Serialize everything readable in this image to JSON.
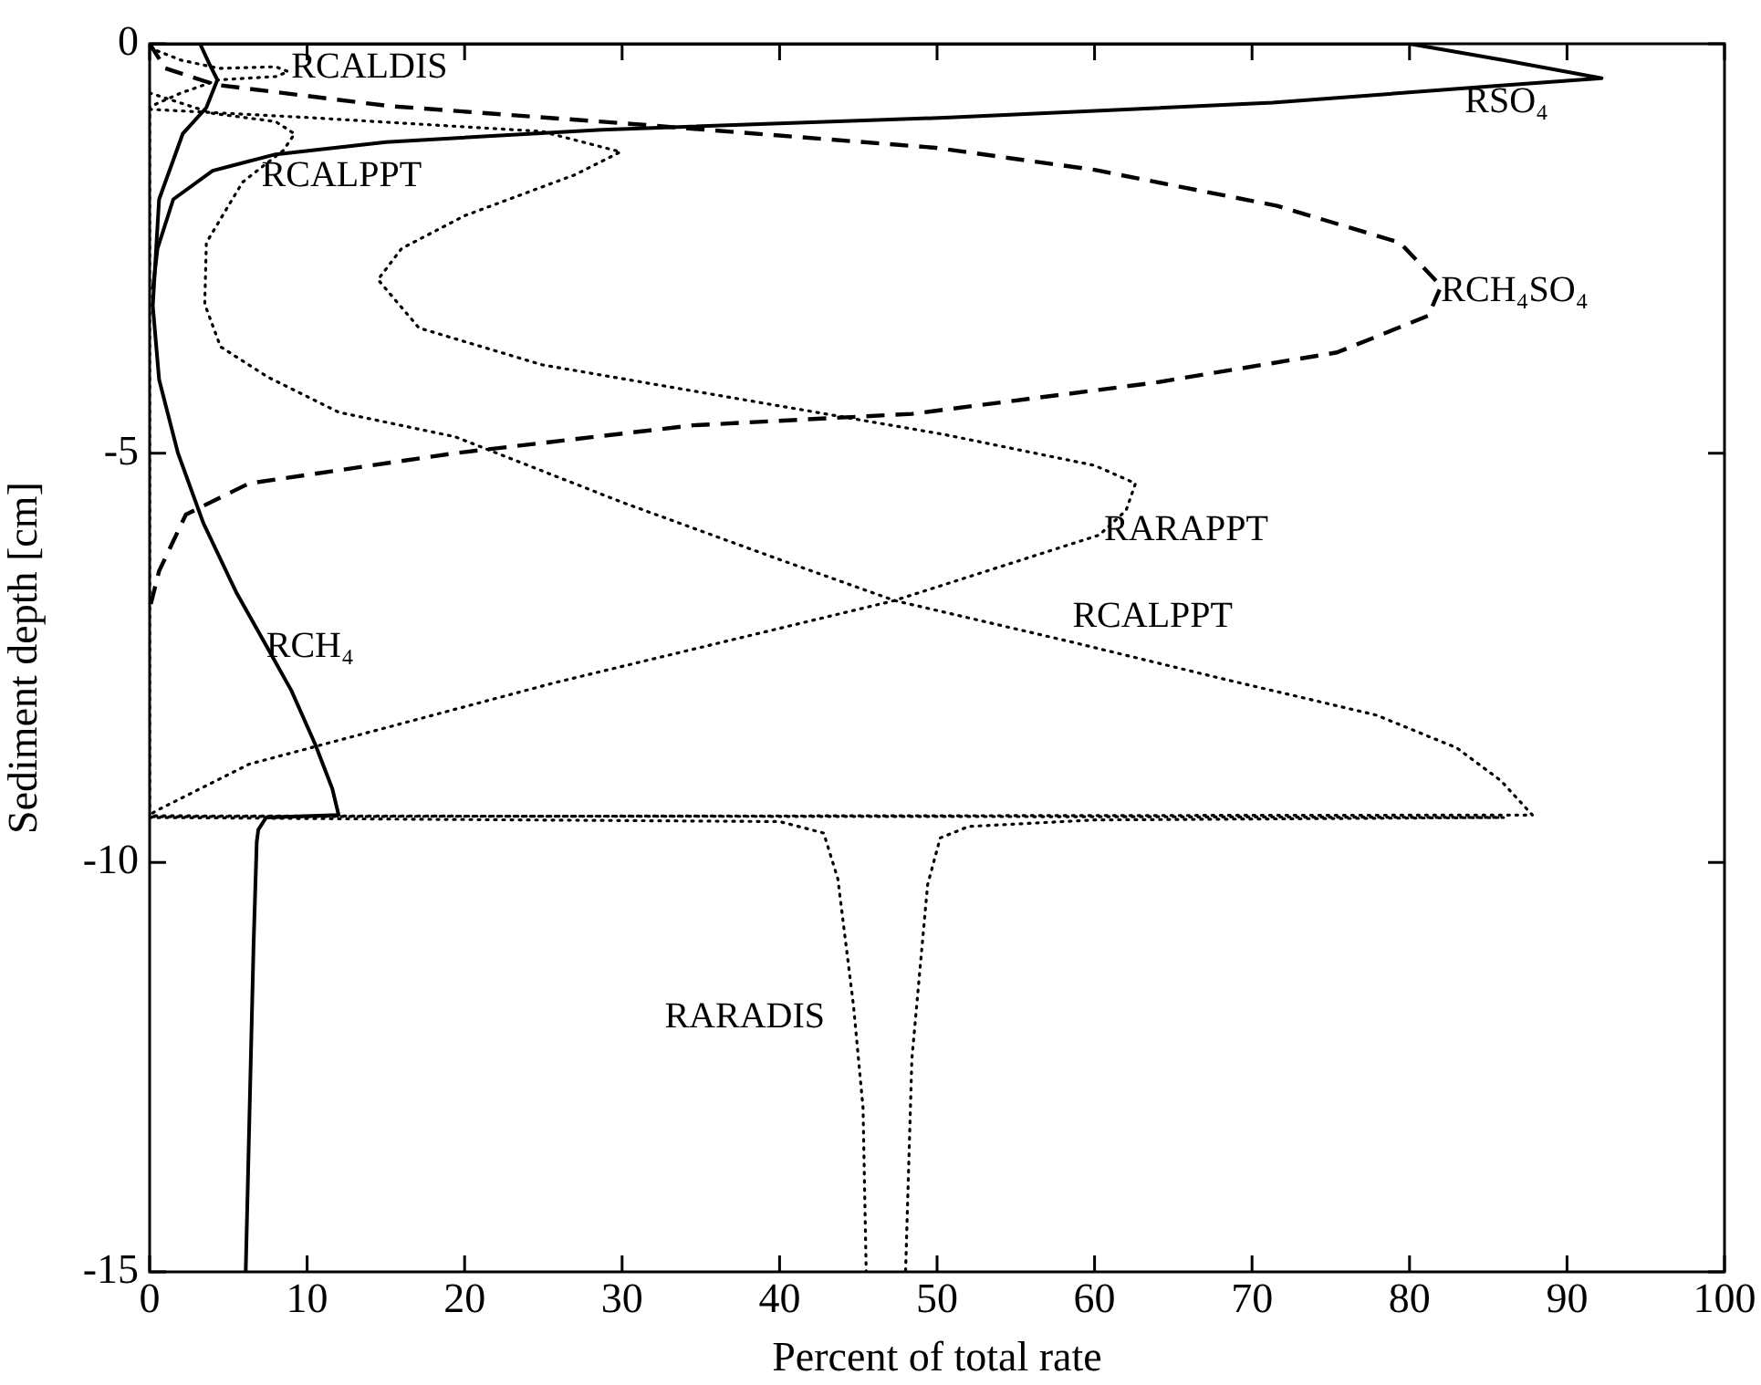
{
  "chart_data": {
    "type": "line",
    "xlabel": "Percent of total rate",
    "ylabel": "Sediment depth [cm]",
    "xlim": [
      0,
      100
    ],
    "xticks": [
      0,
      10,
      20,
      30,
      40,
      50,
      60,
      70,
      80,
      90,
      100
    ],
    "ylim": [
      -15,
      0
    ],
    "yticks": [
      -15,
      -10,
      -5,
      0
    ],
    "series": [
      {
        "color": "#000000",
        "line_style": "solid",
        "x": [
          0,
          80,
          86,
          92.2,
          85,
          71.3,
          50.8,
          28.7,
          15,
          8,
          4,
          1.5,
          0.5,
          0.2
        ],
        "values": [
          0,
          0,
          -0.2,
          -0.42,
          -0.52,
          -0.72,
          -0.9,
          -1.05,
          -1.2,
          -1.35,
          -1.55,
          -1.9,
          -2.5,
          -3
        ]
      },
      {
        "color": "#000000",
        "line_style": "solid",
        "x": [
          3.2,
          3.8,
          4.3,
          3.6,
          2.1,
          0.6,
          0.2,
          0.6,
          1.8,
          3.4,
          5.5,
          7.4,
          9,
          10.5,
          11.6,
          12,
          7.4,
          6.9,
          6.8,
          6.6,
          6.1
        ],
        "values": [
          0,
          -0.25,
          -0.44,
          -0.78,
          -1.1,
          -1.9,
          -3.2,
          -4.1,
          -5,
          -5.85,
          -6.7,
          -7.35,
          -7.9,
          -8.55,
          -9.1,
          -9.42,
          -9.45,
          -9.6,
          -9.75,
          -11,
          -15
        ]
      },
      {
        "color": "#000000",
        "line_style": "dashed",
        "x": [
          0,
          1,
          4.2,
          15.2,
          30.7,
          49.9,
          60,
          71.6,
          79.4,
          82,
          81.2,
          75.4,
          63.8,
          48.4,
          34.5,
          19.4,
          6.3,
          2.3,
          0.6,
          0
        ],
        "values": [
          0,
          -0.3,
          -0.5,
          -0.76,
          -0.98,
          -1.27,
          -1.54,
          -1.98,
          -2.43,
          -2.96,
          -3.32,
          -3.77,
          -4.14,
          -4.52,
          -4.66,
          -5.0,
          -5.37,
          -5.75,
          -6.44,
          -6.9
        ]
      },
      {
        "color": "#000000",
        "line_style": "dotted",
        "x": [
          0,
          10,
          24.9,
          29.9,
          27,
          20,
          16,
          14.5,
          17.1,
          24.9,
          38.4,
          50.4,
          60,
          62.6,
          62,
          60.3,
          47.3,
          25.8,
          6.3,
          0.4,
          0
        ],
        "values": [
          -0.8,
          -0.9,
          -1.07,
          -1.32,
          -1.6,
          -2.1,
          -2.5,
          -2.88,
          -3.47,
          -3.92,
          -4.37,
          -4.77,
          -5.15,
          -5.37,
          -5.7,
          -6.0,
          -6.8,
          -7.8,
          -8.8,
          -9.37,
          -9.42
        ]
      },
      {
        "color": "#000000",
        "line_style": "dotted",
        "x": [
          0,
          4,
          8,
          9.2,
          8.5,
          5.9,
          3.6,
          3.5,
          4.5,
          7.5,
          12,
          19.4,
          30,
          40,
          47.3,
          58.4,
          68,
          77.9,
          83,
          85.8,
          87.8,
          0
        ],
        "values": [
          -0.6,
          -0.85,
          -0.95,
          -1.1,
          -1.3,
          -1.69,
          -2.43,
          -3.18,
          -3.7,
          -4.07,
          -4.5,
          -4.8,
          -5.6,
          -6.3,
          -6.8,
          -7.3,
          -7.75,
          -8.2,
          -8.6,
          -9.0,
          -9.42,
          -9.44
        ]
      },
      {
        "color": "#000000",
        "line_style": "dotted",
        "x": [
          0,
          2,
          4.4,
          8,
          8.8,
          8,
          4.4,
          2,
          0,
          0,
          60,
          86,
          60,
          52,
          50.2,
          49.4,
          48.4,
          48
        ],
        "values": [
          -0.05,
          -0.2,
          -0.3,
          -0.28,
          -0.34,
          -0.4,
          -0.44,
          -0.6,
          -0.77,
          -9.43,
          -9.44,
          -9.45,
          -9.48,
          -9.56,
          -9.7,
          -10.27,
          -12.4,
          -15
        ]
      },
      {
        "color": "#000000",
        "line_style": "dotted",
        "x": [
          0,
          40,
          42.8,
          43.7,
          44.7,
          45.3,
          45.5
        ],
        "values": [
          -9.45,
          -9.5,
          -9.64,
          -10.2,
          -11.76,
          -13,
          -15
        ]
      }
    ],
    "annotations": [
      {
        "text": "RCALDIS",
        "x": 9,
        "y": -0.3
      },
      "RSO₄",
      {
        "text": "RCALPPT",
        "x": 7.1,
        "y": -1.62
      },
      {
        "text": "RCH₄SO₄",
        "x": 82,
        "y": -3.03
      },
      {
        "text": "RARAPPT",
        "x": 60.6,
        "y": -5.95
      },
      "RCALPPT",
      {
        "text": "RCH₄",
        "x": 7.4,
        "y": -7.37
      },
      "RARADIS"
    ]
  }
}
